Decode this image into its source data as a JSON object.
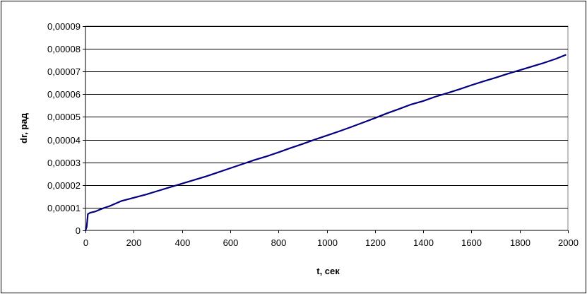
{
  "chart_data": {
    "type": "line",
    "title": "",
    "xlabel": "t, сек",
    "ylabel": "dr, рад",
    "xlim": [
      0,
      2000
    ],
    "ylim": [
      0,
      9e-05
    ],
    "x_ticks": [
      0,
      200,
      400,
      600,
      800,
      1000,
      1200,
      1400,
      1600,
      1800,
      2000
    ],
    "x_tick_labels": [
      "0",
      "200",
      "400",
      "600",
      "800",
      "1000",
      "1200",
      "1400",
      "1600",
      "1800",
      "2000"
    ],
    "y_ticks": [
      0,
      1e-05,
      2e-05,
      3e-05,
      4e-05,
      5e-05,
      6e-05,
      7e-05,
      8e-05,
      9e-05
    ],
    "y_tick_labels": [
      "0",
      "0,00001",
      "0,00002",
      "0,00003",
      "0,00004",
      "0,00005",
      "0,00006",
      "0,00007",
      "0,00008",
      "0,00009"
    ],
    "grid": "horizontal",
    "legend": "none",
    "series": [
      {
        "color": "#000080",
        "x": [
          0,
          5,
          10,
          20,
          40,
          60,
          80,
          100,
          150,
          200,
          250,
          300,
          350,
          400,
          450,
          500,
          550,
          600,
          650,
          700,
          750,
          800,
          850,
          900,
          950,
          1000,
          1050,
          1100,
          1150,
          1200,
          1250,
          1300,
          1350,
          1400,
          1450,
          1500,
          1550,
          1600,
          1650,
          1700,
          1750,
          1800,
          1850,
          1900,
          1950,
          1990
        ],
        "y": [
          0,
          1.5e-06,
          7.2e-06,
          7.8e-06,
          8.3e-06,
          9.2e-06,
          1e-05,
          1.07e-05,
          1.3e-05,
          1.44e-05,
          1.58e-05,
          1.74e-05,
          1.9e-05,
          2.06e-05,
          2.22e-05,
          2.38e-05,
          2.56e-05,
          2.74e-05,
          2.92e-05,
          3.1e-05,
          3.26e-05,
          3.44e-05,
          3.63e-05,
          3.81e-05,
          4e-05,
          4.18e-05,
          4.36e-05,
          4.55e-05,
          4.75e-05,
          4.95e-05,
          5.16e-05,
          5.35e-05,
          5.55e-05,
          5.7e-05,
          5.89e-05,
          6.05e-05,
          6.22e-05,
          6.4e-05,
          6.57e-05,
          6.73e-05,
          6.9e-05,
          7.06e-05,
          7.22e-05,
          7.38e-05,
          7.56e-05,
          7.73e-05
        ]
      }
    ]
  }
}
